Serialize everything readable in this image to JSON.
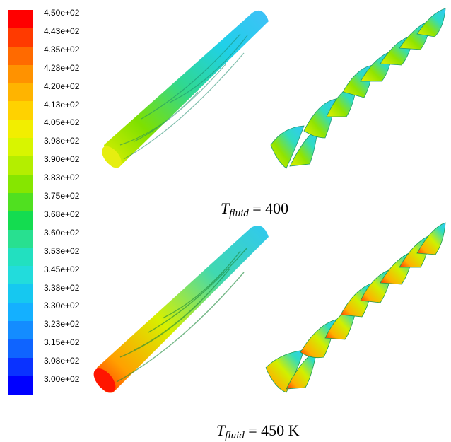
{
  "legend": {
    "colors": [
      "#ff0000",
      "#ff3a00",
      "#ff6a00",
      "#ff9200",
      "#ffb400",
      "#ffd200",
      "#f2ee00",
      "#d8f500",
      "#b4ee00",
      "#86e600",
      "#50e020",
      "#14dc50",
      "#28e090",
      "#22e0c0",
      "#22dcdc",
      "#16c8f0",
      "#14b0ff",
      "#148cff",
      "#0f64ff",
      "#0a32ff",
      "#0000ff"
    ],
    "ticks": [
      "4.50e+02",
      "4.43e+02",
      "4.35e+02",
      "4.28e+02",
      "4.20e+02",
      "4.13e+02",
      "4.05e+02",
      "3.98e+02",
      "3.90e+02",
      "3.83e+02",
      "3.75e+02",
      "3.68e+02",
      "3.60e+02",
      "3.53e+02",
      "3.45e+02",
      "3.38e+02",
      "3.30e+02",
      "3.23e+02",
      "3.15e+02",
      "3.08e+02",
      "3.00e+02"
    ]
  },
  "captions": {
    "top": {
      "symbol": "T",
      "subscript": "fluid",
      "value": " = 400"
    },
    "bottom": {
      "symbol": "T",
      "subscript": "fluid",
      "value": " = 450 K"
    }
  }
}
